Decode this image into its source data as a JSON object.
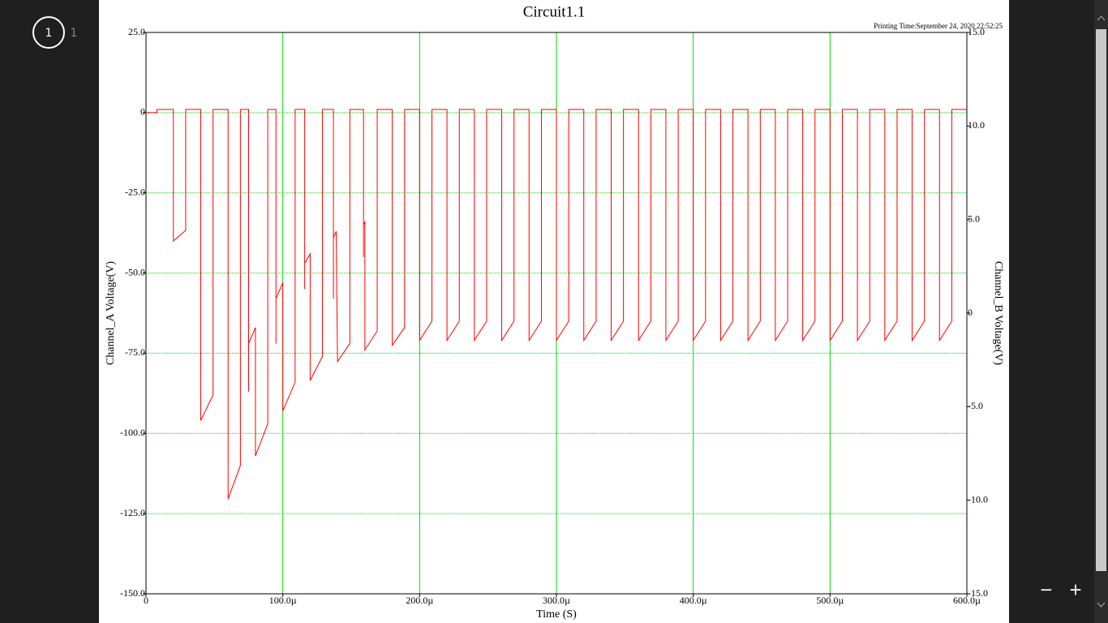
{
  "viewer": {
    "current_page": "1",
    "page_count": "1",
    "zoom_out": "−",
    "zoom_in": "+"
  },
  "chart_data": {
    "type": "line",
    "title": "Circuit1.1",
    "subtitle": "Printing Time:September 24, 2020 22:52:25",
    "xlabel": "Time (S)",
    "ylabel": "Channel_A Voltage(V)",
    "y2label": "Channel_B Voltage(V)",
    "grid": true,
    "grid_color": "#00dd00",
    "xlim": [
      0,
      0.0006
    ],
    "xticks": [
      0,
      {
        "value": 0.0001,
        "label": "100.0µ"
      },
      {
        "value": 0.0002,
        "label": "200.0µ"
      },
      {
        "value": 0.0003,
        "label": "300.0µ"
      },
      {
        "value": 0.0004,
        "label": "400.0µ"
      },
      {
        "value": 0.0005,
        "label": "500.0µ"
      },
      {
        "value": 0.0006,
        "label": "600.0µ"
      }
    ],
    "ylim": [
      -150,
      25
    ],
    "yticks": [
      {
        "value": 25,
        "label": "25.0"
      },
      0,
      {
        "value": -25,
        "label": "-25.0"
      },
      {
        "value": -50,
        "label": "-50.0"
      },
      {
        "value": -75,
        "label": "-75.0"
      },
      {
        "value": -100,
        "label": "-100.0"
      },
      {
        "value": -125,
        "label": "-125.0"
      },
      {
        "value": -150,
        "label": "-150.0"
      }
    ],
    "y2lim": [
      -15,
      15
    ],
    "y2ticks": [
      {
        "value": 15,
        "label": "15.0"
      },
      {
        "value": 10,
        "label": "10.0"
      },
      {
        "value": 5,
        "label": "5.0"
      },
      0,
      {
        "value": -5,
        "label": "-5.0"
      },
      {
        "value": -10,
        "label": "-10.0"
      },
      {
        "value": -15,
        "label": "-15.0"
      }
    ],
    "x": [
      0,
      8e-06,
      8e-06,
      2e-05,
      2e-05,
      2.9e-05,
      2.9e-05,
      4e-05,
      4e-05,
      4.9e-05,
      4.9e-05,
      6e-05,
      6e-05,
      6.9e-05,
      6.9e-05,
      7.5e-05,
      7.5e-05,
      7.5e-05,
      8e-05,
      8e-05,
      8.9e-05,
      8.9e-05,
      9.5e-05,
      9.5e-05,
      9.5e-05,
      0.0001,
      0.0001,
      0.000109,
      0.000109,
      0.000116,
      0.000116,
      0.000116,
      0.00012,
      0.00012,
      0.000129,
      0.000129,
      0.000137,
      0.000137,
      0.000137,
      0.000139,
      0.00014,
      0.000149,
      0.000149,
      0.000159,
      0.000159,
      0.000159,
      0.00016,
      0.00016,
      0.000169,
      0.000169,
      0.00018,
      0.00018,
      0.000189,
      0.000189,
      0.0002,
      0.0002,
      0.000209,
      0.000209,
      0.00022,
      0.00022,
      0.000229,
      0.000229,
      0.00024,
      0.00024,
      0.000249,
      0.000249,
      0.00026,
      0.00026,
      0.000269,
      0.000269,
      0.00028,
      0.00028,
      0.000289,
      0.000289,
      0.0003,
      0.0003,
      0.000309,
      0.000309,
      0.00032,
      0.00032,
      0.000329,
      0.000329,
      0.00034,
      0.00034,
      0.000349,
      0.000349,
      0.00036,
      0.00036,
      0.000369,
      0.000369,
      0.00038,
      0.00038,
      0.000389,
      0.000389,
      0.0004,
      0.0004,
      0.000409,
      0.000409,
      0.00042,
      0.00042,
      0.000429,
      0.000429,
      0.00044,
      0.00044,
      0.000449,
      0.000449,
      0.00046,
      0.00046,
      0.000469,
      0.000469,
      0.00048,
      0.00048,
      0.000489,
      0.000489,
      0.0005,
      0.0005,
      0.000509,
      0.000509,
      0.00052,
      0.00052,
      0.000529,
      0.000529,
      0.00054,
      0.00054,
      0.000549,
      0.000549,
      0.00056,
      0.00056,
      0.000569,
      0.000569,
      0.00058,
      0.00058,
      0.000589,
      0.000589,
      0.0006
    ],
    "series": [
      {
        "color": "#ff0000",
        "values": [
          0,
          0,
          1,
          1,
          -40,
          -36.7,
          1,
          1,
          -96,
          -88,
          1,
          1,
          -120.4,
          -110,
          1,
          1,
          -87,
          -72,
          -67,
          -107,
          -97,
          1,
          1,
          -72,
          -58,
          -53,
          -93,
          -84,
          1,
          1,
          -55,
          -47,
          -44,
          -83.5,
          -76,
          1,
          1,
          -58,
          -39,
          -37,
          -77.6,
          -72,
          1,
          1,
          -45,
          -35,
          -34,
          -74,
          -68,
          1,
          1,
          -72.5,
          -67,
          1,
          1,
          -71,
          -65,
          1,
          1,
          -71,
          -65,
          1,
          1,
          -71,
          -65,
          1,
          1,
          -71,
          -65,
          1,
          1,
          -71,
          -65,
          1,
          1,
          -71,
          -65,
          1,
          1,
          -71,
          -65,
          1,
          1,
          -71,
          -65,
          1,
          1,
          -71,
          -65,
          1,
          1,
          -71,
          -65,
          1,
          1,
          -71,
          -65,
          1,
          1,
          -71,
          -65,
          1,
          1,
          -71,
          -65,
          1,
          1,
          -71,
          -65,
          1,
          1,
          -71,
          -65,
          1,
          1,
          -71,
          -65,
          1,
          1,
          -71,
          -65,
          1,
          1,
          -71,
          -65,
          1,
          1,
          -71,
          -65,
          1,
          1,
          -71,
          -65,
          1,
          1
        ]
      }
    ]
  }
}
